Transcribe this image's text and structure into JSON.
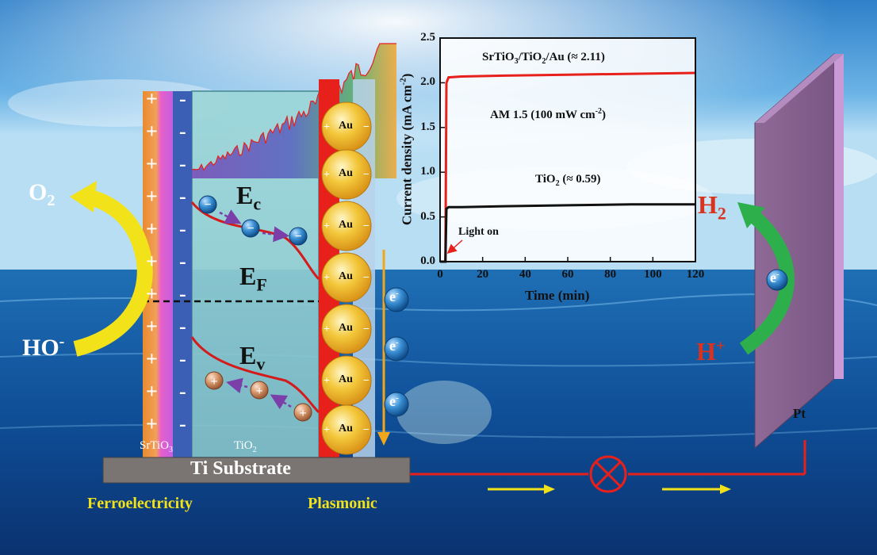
{
  "diagram": {
    "left_plus_signs": [
      "+",
      "+",
      "+",
      "+",
      "+",
      "+",
      "+",
      "+",
      "+",
      "+",
      "+"
    ],
    "left_minus_signs": [
      "-",
      "-",
      "-",
      "-",
      "-",
      "-",
      "-",
      "-",
      "-",
      "-",
      "-"
    ],
    "layers": {
      "srtio3": "SrTiO",
      "srtio3_sub": "3",
      "tio2": "TiO",
      "tio2_sub": "2"
    },
    "substrate": "Ti Substrate",
    "ferro": "Ferroelectricity",
    "plasmonic": "Plasmonic",
    "au_label": "Au",
    "bands": {
      "ec": "E",
      "ec_sub": "c",
      "ef": "E",
      "ef_sub": "F",
      "ev": "E",
      "ev_sub": "v"
    },
    "o2": {
      "main": "O",
      "sub": "2"
    },
    "ho": {
      "main": "HO",
      "sup": "-"
    },
    "h2": {
      "main": "H",
      "sub": "2"
    },
    "hplus": {
      "main": "H",
      "sup": "+"
    },
    "electron": {
      "main": "e",
      "sup": "-"
    },
    "pt": "Pt",
    "colors": {
      "ferro_text": "#f2e21a",
      "h2": "#d9321e",
      "electron_ball": "#2f7fc4",
      "hole_ball": "#d7976c",
      "arrow_yellow": "#f2e21a",
      "arrow_green": "#2db04b",
      "wire": "#e8201c"
    }
  },
  "chart_data": {
    "type": "line",
    "xlabel": "Time (min)",
    "ylabel": "Current density (mA cm",
    "ylabel_sup": "-2",
    "ylabel_end": ")",
    "xlim": [
      0,
      120
    ],
    "ylim": [
      0,
      2.5
    ],
    "xticks": [
      "0",
      "20",
      "40",
      "60",
      "80",
      "100",
      "120"
    ],
    "yticks": [
      "0.0",
      "0.5",
      "1.0",
      "1.5",
      "2.0",
      "2.5"
    ],
    "annotations": {
      "s1_a": "SrTiO",
      "s1_b": "3",
      "s1_c": "/TiO",
      "s1_d": "2",
      "s1_e": "/Au (≈ 2.11)",
      "am_a": "AM 1.5 (100 mW cm",
      "am_sup": "-2",
      "am_b": ")",
      "t_a": "TiO",
      "t_b": "2",
      "t_c": " (≈ 0.59)",
      "light": "Light on"
    },
    "series": [
      {
        "color": "#e8201c",
        "x": [
          0,
          2.5,
          3,
          4,
          10,
          30,
          60,
          90,
          120
        ],
        "y": [
          0,
          0,
          2.0,
          2.06,
          2.07,
          2.08,
          2.09,
          2.1,
          2.11
        ]
      },
      {
        "color": "#111111",
        "x": [
          0,
          2.5,
          3,
          4,
          10,
          30,
          60,
          90,
          120
        ],
        "y": [
          0,
          0,
          0.59,
          0.61,
          0.61,
          0.62,
          0.63,
          0.64,
          0.64
        ]
      }
    ]
  }
}
